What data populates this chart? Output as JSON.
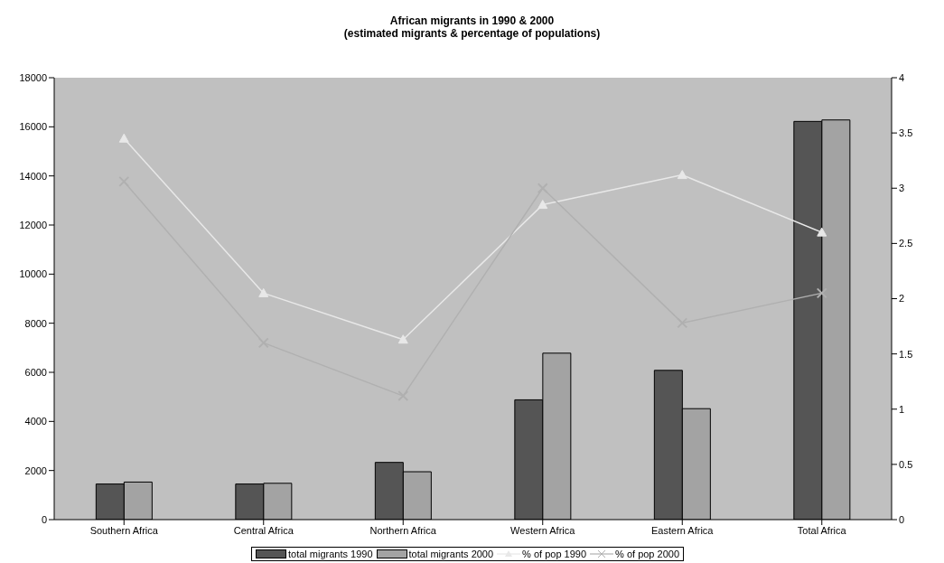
{
  "chart_data": {
    "type": "bar",
    "title": "African migrants in 1990 & 2000\n(estimated migrants & percentage of populations)",
    "categories": [
      "Southern Africa",
      "Central Africa",
      "Northern Africa",
      "Western Africa",
      "Eastern Africa",
      "Total Africa"
    ],
    "series": [
      {
        "name": "total migrants 1990",
        "color": "#555555",
        "values": [
          1450,
          1450,
          2330,
          4880,
          6080,
          16220
        ]
      },
      {
        "name": "total migrants 2000",
        "color": "#a3a3a3",
        "values": [
          1530,
          1480,
          1950,
          6780,
          4520,
          16280
        ]
      },
      {
        "name": "% of pop 1990",
        "type": "line",
        "axis": "y2",
        "color": "#e8e8e8",
        "marker": "triangle",
        "values": [
          3.45,
          2.05,
          1.63,
          2.85,
          3.12,
          2.6
        ]
      },
      {
        "name": "% of pop 2000",
        "type": "line",
        "axis": "y2",
        "color": "#b0b0b0",
        "marker": "cross",
        "values": [
          3.06,
          1.6,
          1.12,
          3.0,
          1.78,
          2.05
        ]
      }
    ],
    "ylim": [
      0,
      18000
    ],
    "yticks": [
      0,
      2000,
      4000,
      6000,
      8000,
      10000,
      12000,
      14000,
      16000,
      18000
    ],
    "y2lim": [
      0,
      4
    ],
    "y2ticks": [
      0,
      0.5,
      1,
      1.5,
      2,
      2.5,
      3,
      3.5,
      4
    ],
    "grid": false,
    "legend": "bottom"
  }
}
